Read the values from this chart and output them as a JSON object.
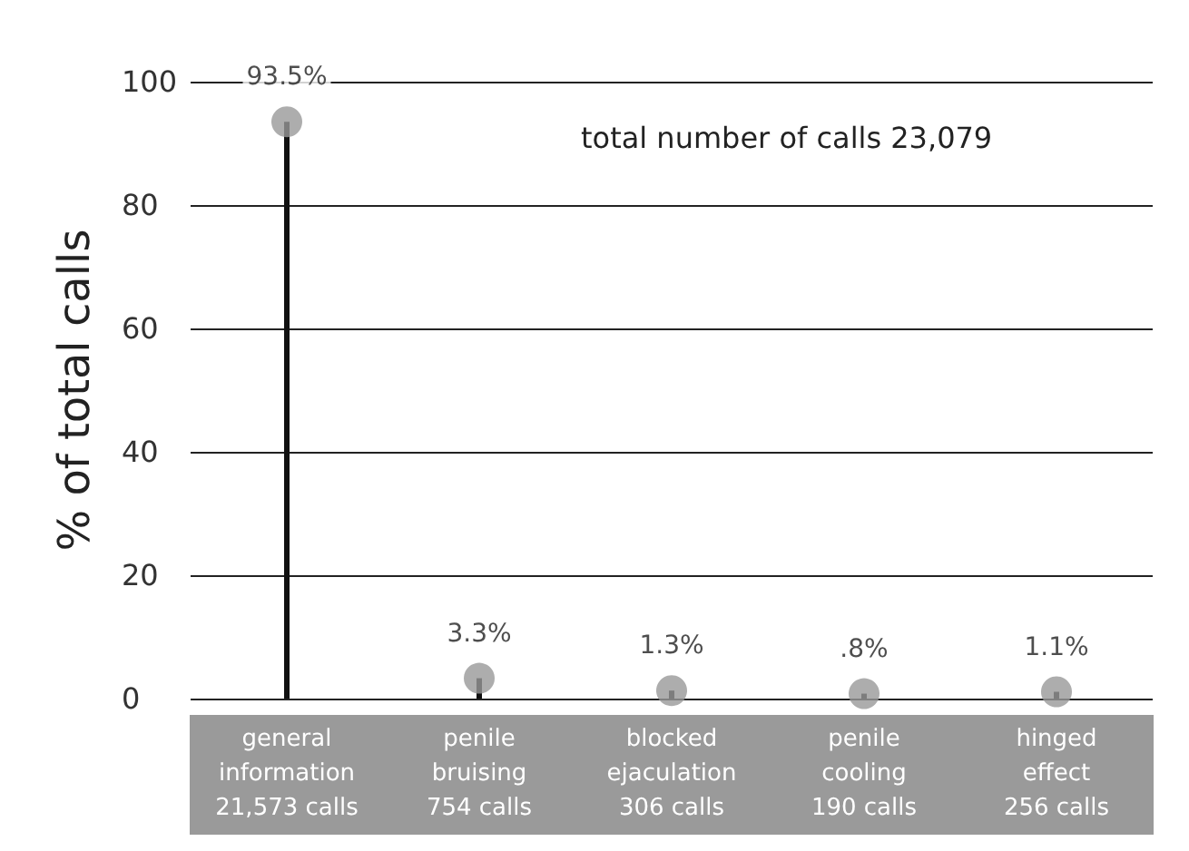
{
  "chart_data": {
    "type": "lollipop",
    "ylabel": "% of total calls",
    "categories": [
      "general\ninformation\n21,573 calls",
      "penile\nbruising\n754 calls",
      "blocked\nejaculation\n306 calls",
      "penile\ncooling\n190 calls",
      "hinged\neffect\n256 calls"
    ],
    "values": [
      93.5,
      3.3,
      1.3,
      0.8,
      1.1
    ],
    "value_labels": [
      "93.5%",
      "3.3%",
      "1.3%",
      ".8%",
      "1.1%"
    ],
    "color": "#999999",
    "ylim": [
      0,
      100
    ],
    "yticks": [
      0,
      20,
      40,
      60,
      80,
      100
    ],
    "grid": "y",
    "marker": "circle",
    "annotations": [
      "total number of calls 23,079"
    ]
  }
}
